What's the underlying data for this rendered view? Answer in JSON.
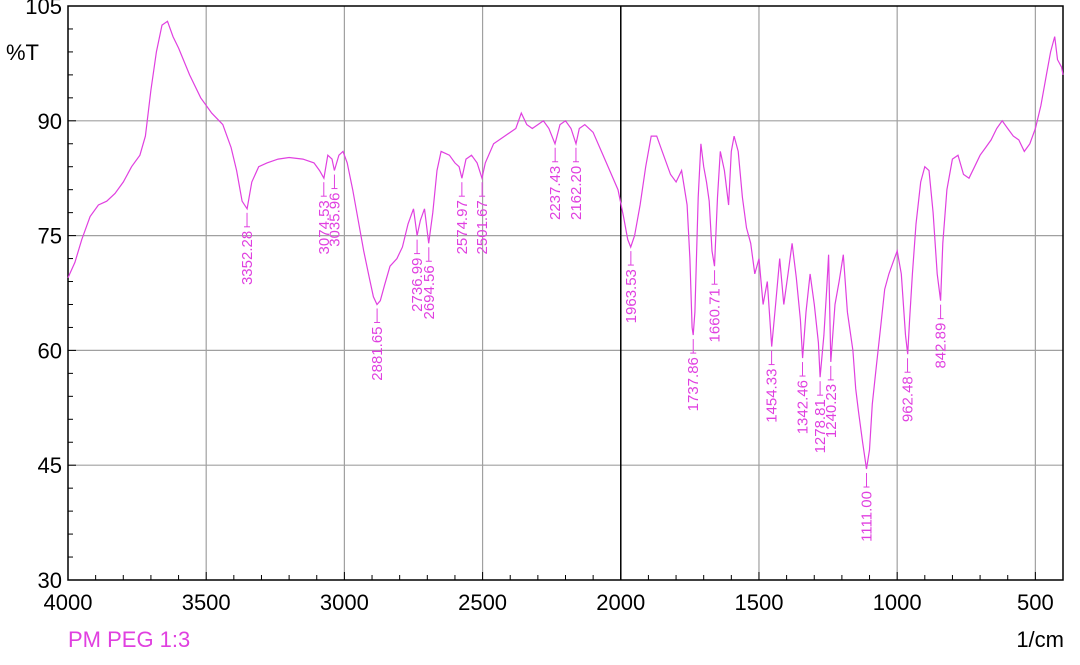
{
  "chart_data": {
    "type": "line",
    "xlabel": "1/cm",
    "ylabel": "%T",
    "xlim": [
      4000,
      400
    ],
    "ylim": [
      30,
      105
    ],
    "x_reversed": true,
    "grid": true,
    "legend_placement": "bottom-left",
    "x_ticks": [
      4000,
      3500,
      3000,
      2500,
      2000,
      1500,
      1000,
      500
    ],
    "y_ticks": [
      30,
      45,
      60,
      75,
      90,
      105
    ],
    "x_tick_labels": [
      "4000",
      "3500",
      "3000",
      "2500",
      "2000",
      "1500",
      "1000",
      "500"
    ],
    "y_tick_labels": [
      "30",
      "45",
      "60",
      "75",
      "90",
      "105"
    ],
    "marker_line_x": 2000,
    "series": [
      {
        "name": "PM PEG 1:3",
        "color": "#e040e0",
        "points": [
          [
            4000,
            69.5
          ],
          [
            3975,
            71.5
          ],
          [
            3950,
            74.5
          ],
          [
            3920,
            77.5
          ],
          [
            3890,
            79
          ],
          [
            3860,
            79.5
          ],
          [
            3830,
            80.5
          ],
          [
            3800,
            82
          ],
          [
            3770,
            84
          ],
          [
            3740,
            85.5
          ],
          [
            3720,
            88
          ],
          [
            3700,
            94
          ],
          [
            3680,
            99
          ],
          [
            3660,
            102.5
          ],
          [
            3640,
            103
          ],
          [
            3620,
            101
          ],
          [
            3600,
            99.5
          ],
          [
            3560,
            96
          ],
          [
            3520,
            93
          ],
          [
            3480,
            91
          ],
          [
            3440,
            89.5
          ],
          [
            3410,
            86.5
          ],
          [
            3390,
            83.5
          ],
          [
            3370,
            79.5
          ],
          [
            3352,
            78.5
          ],
          [
            3335,
            82
          ],
          [
            3310,
            84
          ],
          [
            3280,
            84.5
          ],
          [
            3240,
            85
          ],
          [
            3200,
            85.2
          ],
          [
            3150,
            85
          ],
          [
            3110,
            84.5
          ],
          [
            3090,
            83.5
          ],
          [
            3074,
            82.5
          ],
          [
            3060,
            85.5
          ],
          [
            3045,
            85
          ],
          [
            3036,
            83.5
          ],
          [
            3020,
            85.5
          ],
          [
            3005,
            86
          ],
          [
            2990,
            84.5
          ],
          [
            2970,
            81
          ],
          [
            2950,
            77
          ],
          [
            2930,
            73
          ],
          [
            2910,
            69.5
          ],
          [
            2895,
            67
          ],
          [
            2882,
            66
          ],
          [
            2870,
            66.5
          ],
          [
            2855,
            68.5
          ],
          [
            2835,
            71
          ],
          [
            2810,
            72
          ],
          [
            2790,
            73.5
          ],
          [
            2770,
            76.5
          ],
          [
            2750,
            78.5
          ],
          [
            2737,
            75
          ],
          [
            2725,
            77
          ],
          [
            2710,
            78.5
          ],
          [
            2695,
            74
          ],
          [
            2680,
            78
          ],
          [
            2665,
            83.5
          ],
          [
            2650,
            86
          ],
          [
            2620,
            85.5
          ],
          [
            2600,
            84.5
          ],
          [
            2585,
            84
          ],
          [
            2575,
            82.5
          ],
          [
            2560,
            85
          ],
          [
            2540,
            85.5
          ],
          [
            2520,
            84.5
          ],
          [
            2502,
            82.5
          ],
          [
            2490,
            84.5
          ],
          [
            2460,
            87
          ],
          [
            2420,
            88
          ],
          [
            2380,
            89
          ],
          [
            2360,
            91
          ],
          [
            2340,
            89.5
          ],
          [
            2320,
            89
          ],
          [
            2300,
            89.5
          ],
          [
            2280,
            90
          ],
          [
            2260,
            89
          ],
          [
            2238,
            87
          ],
          [
            2220,
            89.5
          ],
          [
            2200,
            90
          ],
          [
            2180,
            89
          ],
          [
            2162,
            87
          ],
          [
            2150,
            89
          ],
          [
            2130,
            89.5
          ],
          [
            2100,
            88.5
          ],
          [
            2070,
            86
          ],
          [
            2040,
            83.5
          ],
          [
            2010,
            81
          ],
          [
            1990,
            77.5
          ],
          [
            1975,
            74.5
          ],
          [
            1964,
            73.5
          ],
          [
            1950,
            75
          ],
          [
            1930,
            79
          ],
          [
            1910,
            84
          ],
          [
            1890,
            88
          ],
          [
            1870,
            88
          ],
          [
            1850,
            86
          ],
          [
            1820,
            83
          ],
          [
            1800,
            82
          ],
          [
            1780,
            83.5
          ],
          [
            1760,
            79
          ],
          [
            1750,
            72
          ],
          [
            1742,
            63
          ],
          [
            1738,
            62
          ],
          [
            1732,
            65
          ],
          [
            1720,
            80
          ],
          [
            1710,
            87
          ],
          [
            1700,
            84
          ],
          [
            1690,
            82
          ],
          [
            1680,
            79.5
          ],
          [
            1670,
            73
          ],
          [
            1661,
            71
          ],
          [
            1650,
            80
          ],
          [
            1640,
            86
          ],
          [
            1625,
            83.5
          ],
          [
            1610,
            79
          ],
          [
            1600,
            86
          ],
          [
            1590,
            88
          ],
          [
            1575,
            86
          ],
          [
            1560,
            80
          ],
          [
            1545,
            76
          ],
          [
            1530,
            74
          ],
          [
            1515,
            70
          ],
          [
            1500,
            72
          ],
          [
            1485,
            66
          ],
          [
            1470,
            69
          ],
          [
            1454,
            60.5
          ],
          [
            1440,
            66
          ],
          [
            1425,
            72
          ],
          [
            1410,
            66
          ],
          [
            1395,
            70
          ],
          [
            1380,
            74
          ],
          [
            1365,
            69.5
          ],
          [
            1350,
            64
          ],
          [
            1342,
            59
          ],
          [
            1330,
            65
          ],
          [
            1315,
            70
          ],
          [
            1300,
            66
          ],
          [
            1285,
            61
          ],
          [
            1279,
            56.5
          ],
          [
            1265,
            62
          ],
          [
            1255,
            68
          ],
          [
            1248,
            72.5
          ],
          [
            1240,
            58.5
          ],
          [
            1225,
            66
          ],
          [
            1210,
            69
          ],
          [
            1195,
            72.5
          ],
          [
            1180,
            65
          ],
          [
            1160,
            60
          ],
          [
            1150,
            55
          ],
          [
            1140,
            52
          ],
          [
            1125,
            48
          ],
          [
            1111,
            44.5
          ],
          [
            1100,
            47
          ],
          [
            1090,
            53
          ],
          [
            1075,
            58
          ],
          [
            1060,
            63
          ],
          [
            1045,
            68
          ],
          [
            1030,
            70
          ],
          [
            1015,
            71.5
          ],
          [
            1000,
            73
          ],
          [
            985,
            70
          ],
          [
            970,
            62
          ],
          [
            962,
            59.5
          ],
          [
            955,
            64
          ],
          [
            945,
            70
          ],
          [
            932,
            76.5
          ],
          [
            915,
            82
          ],
          [
            900,
            84
          ],
          [
            885,
            83.5
          ],
          [
            870,
            78
          ],
          [
            855,
            70
          ],
          [
            843,
            66.5
          ],
          [
            835,
            74
          ],
          [
            820,
            81
          ],
          [
            800,
            85
          ],
          [
            780,
            85.5
          ],
          [
            760,
            83
          ],
          [
            740,
            82.5
          ],
          [
            720,
            84
          ],
          [
            700,
            85.5
          ],
          [
            680,
            86.5
          ],
          [
            660,
            87.5
          ],
          [
            640,
            89
          ],
          [
            620,
            90
          ],
          [
            600,
            89
          ],
          [
            580,
            88
          ],
          [
            560,
            87.5
          ],
          [
            540,
            86
          ],
          [
            520,
            87
          ],
          [
            500,
            89
          ],
          [
            480,
            92
          ],
          [
            460,
            96
          ],
          [
            445,
            99
          ],
          [
            430,
            101
          ],
          [
            420,
            98
          ],
          [
            405,
            97
          ],
          [
            400,
            96
          ]
        ]
      }
    ],
    "peak_labels": [
      {
        "text": "3352.28",
        "x": 3352.28,
        "tip_y": 78.5,
        "side": "below"
      },
      {
        "text": "3074.53",
        "x": 3074.53,
        "tip_y": 82.5,
        "side": "below"
      },
      {
        "text": "3035.96",
        "x": 3035.96,
        "tip_y": 83.5,
        "side": "below"
      },
      {
        "text": "2881.65",
        "x": 2881.65,
        "tip_y": 66.0,
        "side": "below"
      },
      {
        "text": "2736.99",
        "x": 2736.99,
        "tip_y": 75.0,
        "side": "below"
      },
      {
        "text": "2694.56",
        "x": 2694.56,
        "tip_y": 74.0,
        "side": "below"
      },
      {
        "text": "2574.97",
        "x": 2574.97,
        "tip_y": 82.5,
        "side": "below"
      },
      {
        "text": "2501.67",
        "x": 2501.67,
        "tip_y": 82.5,
        "side": "below"
      },
      {
        "text": "2237.43",
        "x": 2237.43,
        "tip_y": 87.0,
        "side": "below"
      },
      {
        "text": "2162.20",
        "x": 2162.2,
        "tip_y": 87.0,
        "side": "below"
      },
      {
        "text": "1963.53",
        "x": 1963.53,
        "tip_y": 73.5,
        "side": "below"
      },
      {
        "text": "1737.86",
        "x": 1737.86,
        "tip_y": 62.0,
        "side": "below"
      },
      {
        "text": "1660.71",
        "x": 1660.71,
        "tip_y": 71.0,
        "side": "below"
      },
      {
        "text": "1454.33",
        "x": 1454.33,
        "tip_y": 60.5,
        "side": "below"
      },
      {
        "text": "1342.46",
        "x": 1342.46,
        "tip_y": 59.0,
        "side": "below"
      },
      {
        "text": "1278.81",
        "x": 1278.81,
        "tip_y": 56.5,
        "side": "below"
      },
      {
        "text": "1240.23",
        "x": 1240.23,
        "tip_y": 58.5,
        "side": "below"
      },
      {
        "text": "1111.00",
        "x": 1111.0,
        "tip_y": 44.5,
        "side": "below"
      },
      {
        "text": "962.48",
        "x": 962.48,
        "tip_y": 59.5,
        "side": "below"
      },
      {
        "text": "842.89",
        "x": 842.89,
        "tip_y": 66.5,
        "side": "below"
      }
    ]
  },
  "legend": {
    "label": "PM PEG 1:3",
    "color": "#e040e0"
  },
  "colors": {
    "series": "#e040e0",
    "grid": "#a0a0a0",
    "axis": "#000000"
  }
}
